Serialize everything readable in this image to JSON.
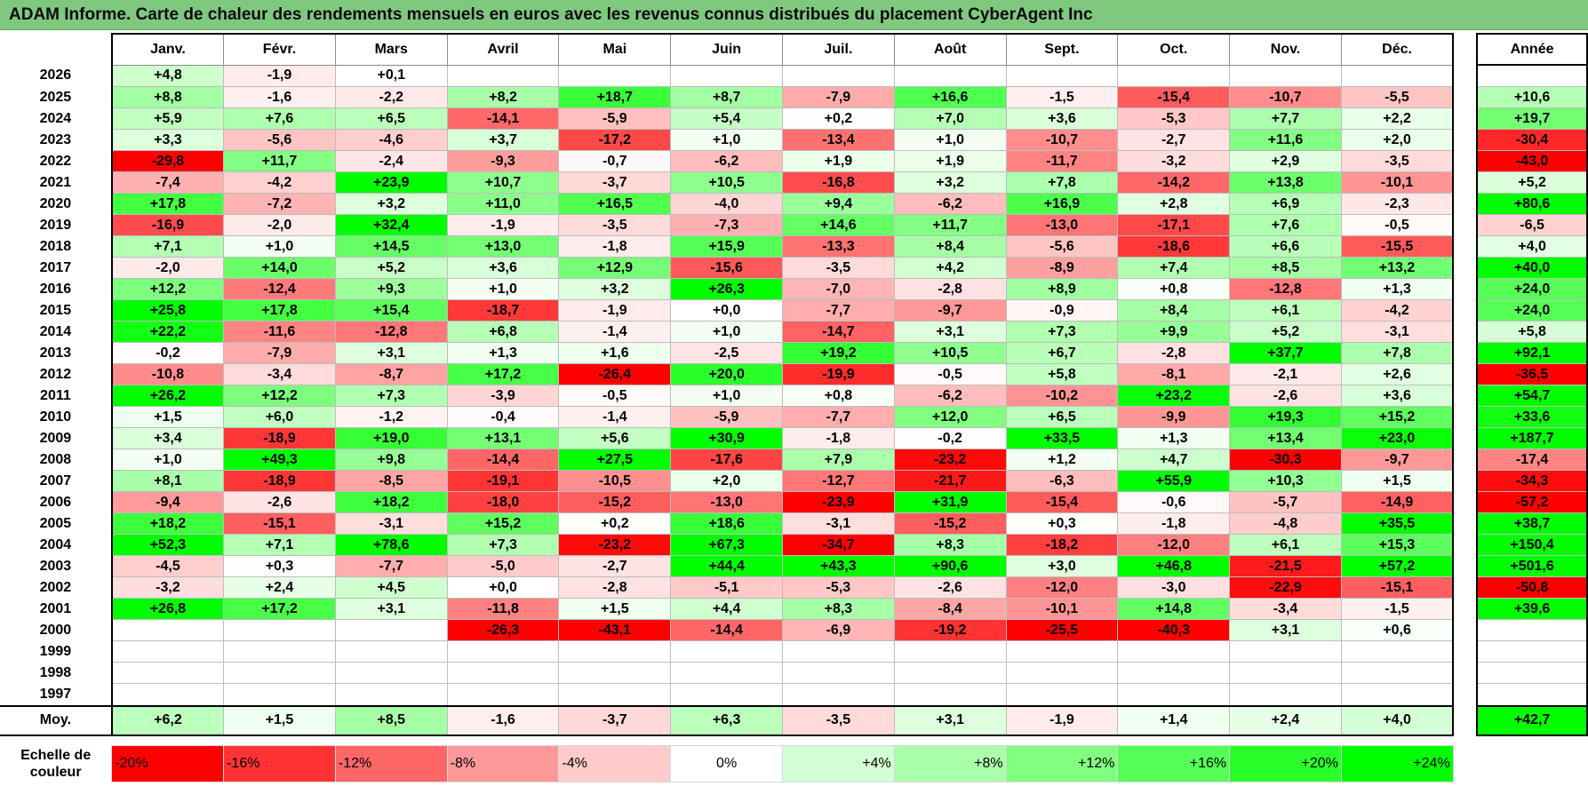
{
  "title": "ADAM Informe. Carte de chaleur des rendements mensuels en euros avec les revenus connus distribués du placement CyberAgent Inc",
  "chart_data": {
    "type": "heatmap",
    "title": "ADAM Informe. Carte de chaleur des rendements mensuels en euros avec les revenus connus distribués du placement CyberAgent Inc",
    "months": [
      "Janv.",
      "Févr.",
      "Mars",
      "Avril",
      "Mai",
      "Juin",
      "Juil.",
      "Août",
      "Sept.",
      "Oct.",
      "Nov.",
      "Déc."
    ],
    "year_header": "Année",
    "rows": [
      {
        "year": "2026",
        "values": [
          "+4,8",
          "-1,9",
          "+0,1",
          "",
          "",
          "",
          "",
          "",
          "",
          "",
          "",
          ""
        ],
        "annual": ""
      },
      {
        "year": "2025",
        "values": [
          "+8,8",
          "-1,6",
          "-2,2",
          "+8,2",
          "+18,7",
          "+8,7",
          "-7,9",
          "+16,6",
          "-1,5",
          "-15,4",
          "-10,7",
          "-5,5"
        ],
        "annual": "+10,6"
      },
      {
        "year": "2024",
        "values": [
          "+5,9",
          "+7,6",
          "+6,5",
          "-14,1",
          "-5,9",
          "+5,4",
          "+0,2",
          "+7,0",
          "+3,6",
          "-5,3",
          "+7,7",
          "+2,2"
        ],
        "annual": "+19,7"
      },
      {
        "year": "2023",
        "values": [
          "+3,3",
          "-5,6",
          "-4,6",
          "+3,7",
          "-17,2",
          "+1,0",
          "-13,4",
          "+1,0",
          "-10,7",
          "-2,7",
          "+11,6",
          "+2,0"
        ],
        "annual": "-30,4"
      },
      {
        "year": "2022",
        "values": [
          "-29,8",
          "+11,7",
          "-2,4",
          "-9,3",
          "-0,7",
          "-6,2",
          "+1,9",
          "+1,9",
          "-11,7",
          "-3,2",
          "+2,9",
          "-3,5"
        ],
        "annual": "-43,0"
      },
      {
        "year": "2021",
        "values": [
          "-7,4",
          "-4,2",
          "+23,9",
          "+10,7",
          "-3,7",
          "+10,5",
          "-16,8",
          "+3,2",
          "+7,8",
          "-14,2",
          "+13,8",
          "-10,1"
        ],
        "annual": "+5,2"
      },
      {
        "year": "2020",
        "values": [
          "+17,8",
          "-7,2",
          "+3,2",
          "+11,0",
          "+16,5",
          "-4,0",
          "+9,4",
          "-6,2",
          "+16,9",
          "+2,8",
          "+6,9",
          "-2,3"
        ],
        "annual": "+80,6"
      },
      {
        "year": "2019",
        "values": [
          "-16,9",
          "-2,0",
          "+32,4",
          "-1,9",
          "-3,5",
          "-7,3",
          "+14,6",
          "+11,7",
          "-13,0",
          "-17,1",
          "+7,6",
          "-0,5"
        ],
        "annual": "-6,5"
      },
      {
        "year": "2018",
        "values": [
          "+7,1",
          "+1,0",
          "+14,5",
          "+13,0",
          "-1,8",
          "+15,9",
          "-13,3",
          "+8,4",
          "-5,6",
          "-18,6",
          "+6,6",
          "-15,5"
        ],
        "annual": "+4,0"
      },
      {
        "year": "2017",
        "values": [
          "-2,0",
          "+14,0",
          "+5,2",
          "+3,6",
          "+12,9",
          "-15,6",
          "-3,5",
          "+4,2",
          "-8,9",
          "+7,4",
          "+8,5",
          "+13,2"
        ],
        "annual": "+40,0"
      },
      {
        "year": "2016",
        "values": [
          "+12,2",
          "-12,4",
          "+9,3",
          "+1,0",
          "+3,2",
          "+26,3",
          "-7,0",
          "-2,8",
          "+8,9",
          "+0,8",
          "-12,8",
          "+1,3"
        ],
        "annual": "+24,0"
      },
      {
        "year": "2015",
        "values": [
          "+25,8",
          "+17,8",
          "+15,4",
          "-18,7",
          "-1,9",
          "+0,0",
          "-7,7",
          "-9,7",
          "-0,9",
          "+8,4",
          "+6,1",
          "-4,2"
        ],
        "annual": "+24,0"
      },
      {
        "year": "2014",
        "values": [
          "+22,2",
          "-11,6",
          "-12,8",
          "+6,8",
          "-1,4",
          "+1,0",
          "-14,7",
          "+3,1",
          "+7,3",
          "+9,9",
          "+5,2",
          "-3,1"
        ],
        "annual": "+5,8"
      },
      {
        "year": "2013",
        "values": [
          "-0,2",
          "-7,9",
          "+3,1",
          "+1,3",
          "+1,6",
          "-2,5",
          "+19,2",
          "+10,5",
          "+6,7",
          "-2,8",
          "+37,7",
          "+7,8"
        ],
        "annual": "+92,1"
      },
      {
        "year": "2012",
        "values": [
          "-10,8",
          "-3,4",
          "-8,7",
          "+17,2",
          "-26,4",
          "+20,0",
          "-19,9",
          "-0,5",
          "+5,8",
          "-8,1",
          "-2,1",
          "+2,6"
        ],
        "annual": "-36,5"
      },
      {
        "year": "2011",
        "values": [
          "+26,2",
          "+12,2",
          "+7,3",
          "-3,9",
          "-0,5",
          "+1,0",
          "+0,8",
          "-6,2",
          "-10,2",
          "+23,2",
          "-2,6",
          "+3,6"
        ],
        "annual": "+54,7"
      },
      {
        "year": "2010",
        "values": [
          "+1,5",
          "+6,0",
          "-1,2",
          "-0,4",
          "-1,4",
          "-5,9",
          "-7,7",
          "+12,0",
          "+6,5",
          "-9,9",
          "+19,3",
          "+15,2"
        ],
        "annual": "+33,6"
      },
      {
        "year": "2009",
        "values": [
          "+3,4",
          "-18,9",
          "+19,0",
          "+13,1",
          "+5,6",
          "+30,9",
          "-1,8",
          "-0,2",
          "+33,5",
          "+1,3",
          "+13,4",
          "+23,0"
        ],
        "annual": "+187,7"
      },
      {
        "year": "2008",
        "values": [
          "+1,0",
          "+49,3",
          "+9,8",
          "-14,4",
          "+27,5",
          "-17,6",
          "+7,9",
          "-23,2",
          "+1,2",
          "+4,7",
          "-30,3",
          "-9,7"
        ],
        "annual": "-17,4"
      },
      {
        "year": "2007",
        "values": [
          "+8,1",
          "-18,9",
          "-8,5",
          "-19,1",
          "-10,5",
          "+2,0",
          "-12,7",
          "-21,7",
          "-6,3",
          "+55,9",
          "+10,3",
          "+1,5"
        ],
        "annual": "-34,3"
      },
      {
        "year": "2006",
        "values": [
          "-9,4",
          "-2,6",
          "+18,2",
          "-18,0",
          "-15,2",
          "-13,0",
          "-23,9",
          "+31,9",
          "-15,4",
          "-0,6",
          "-5,7",
          "-14,9"
        ],
        "annual": "-57,2"
      },
      {
        "year": "2005",
        "values": [
          "+18,2",
          "-15,1",
          "-3,1",
          "+15,2",
          "+0,2",
          "+18,6",
          "-3,1",
          "-15,2",
          "+0,3",
          "-1,8",
          "-4,8",
          "+35,5"
        ],
        "annual": "+38,7"
      },
      {
        "year": "2004",
        "values": [
          "+52,3",
          "+7,1",
          "+78,6",
          "+7,3",
          "-23,2",
          "+67,3",
          "-34,7",
          "+8,3",
          "-18,2",
          "-12,0",
          "+6,1",
          "+15,3"
        ],
        "annual": "+150,4"
      },
      {
        "year": "2003",
        "values": [
          "-4,5",
          "+0,3",
          "-7,7",
          "-5,0",
          "-2,7",
          "+44,4",
          "+43,3",
          "+90,6",
          "+3,0",
          "+46,8",
          "-21,5",
          "+57,2"
        ],
        "annual": "+501,6"
      },
      {
        "year": "2002",
        "values": [
          "-3,2",
          "+2,4",
          "+4,5",
          "+0,0",
          "-2,8",
          "-5,1",
          "-5,3",
          "-2,6",
          "-12,0",
          "-3,0",
          "-22,9",
          "-15,1"
        ],
        "annual": "-50,8"
      },
      {
        "year": "2001",
        "values": [
          "+26,8",
          "+17,2",
          "+3,1",
          "-11,8",
          "+1,5",
          "+4,4",
          "+8,3",
          "-8,4",
          "-10,1",
          "+14,8",
          "-3,4",
          "-1,5"
        ],
        "annual": "+39,6"
      },
      {
        "year": "2000",
        "values": [
          "",
          "",
          "",
          "-26,3",
          "-43,1",
          "-14,4",
          "-6,9",
          "-19,2",
          "-25,5",
          "-40,3",
          "+3,1",
          "+0,6"
        ],
        "annual": ""
      },
      {
        "year": "1999",
        "values": [
          "",
          "",
          "",
          "",
          "",
          "",
          "",
          "",
          "",
          "",
          "",
          ""
        ],
        "annual": ""
      },
      {
        "year": "1998",
        "values": [
          "",
          "",
          "",
          "",
          "",
          "",
          "",
          "",
          "",
          "",
          "",
          ""
        ],
        "annual": ""
      },
      {
        "year": "1997",
        "values": [
          "",
          "",
          "",
          "",
          "",
          "",
          "",
          "",
          "",
          "",
          "",
          ""
        ],
        "annual": ""
      }
    ],
    "average": {
      "label": "Moy.",
      "values": [
        "+6,2",
        "+1,5",
        "+8,5",
        "-1,6",
        "-3,7",
        "+6,3",
        "-3,5",
        "+3,1",
        "-1,9",
        "+1,4",
        "+2,4",
        "+4,0"
      ],
      "annual": "+42,7"
    },
    "color_scale": {
      "label_line1": "Echelle de",
      "label_line2": "couleur",
      "steps": [
        "-20%",
        "-16%",
        "-12%",
        "-8%",
        "-4%",
        "0%",
        "+4%",
        "+8%",
        "+12%",
        "+16%",
        "+20%",
        "+24%"
      ]
    }
  },
  "colors": {
    "negative_max": "#ff0000",
    "neutral": "#ffffff",
    "positive_max": "#00ff00",
    "title_bar": "#7fc97f"
  }
}
